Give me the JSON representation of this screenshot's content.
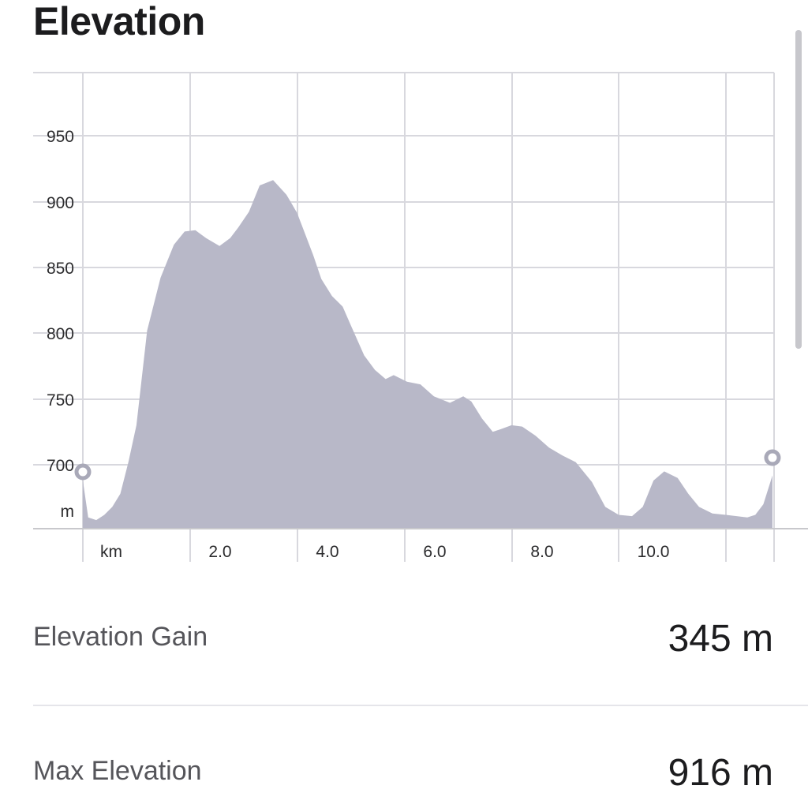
{
  "header": {
    "title": "Elevation"
  },
  "chart_data": {
    "type": "area",
    "title": "",
    "xlabel": "km",
    "ylabel": "m",
    "x_ticks": [
      "2.0",
      "4.0",
      "6.0",
      "8.0",
      "10.0"
    ],
    "y_ticks": [
      "700",
      "750",
      "800",
      "850",
      "900",
      "950"
    ],
    "xlim": [
      0,
      12.9
    ],
    "ylim": [
      650,
      995
    ],
    "grid": true,
    "fill_color": "#b8b8c8",
    "series": [
      {
        "x": [
          0.0,
          0.1,
          0.25,
          0.4,
          0.55,
          0.7,
          0.85,
          1.0,
          1.2,
          1.45,
          1.7,
          1.9,
          2.1,
          2.3,
          2.55,
          2.75,
          2.9,
          3.1,
          3.3,
          3.55,
          3.8,
          4.0,
          4.15,
          4.3,
          4.45,
          4.65,
          4.85,
          5.0,
          5.25,
          5.45,
          5.65,
          5.8,
          6.05,
          6.3,
          6.55,
          6.85,
          7.1,
          7.25,
          7.45,
          7.65,
          7.8,
          8.0,
          8.2,
          8.45,
          8.7,
          8.95,
          9.2,
          9.5,
          9.75,
          10.0,
          10.25,
          10.45,
          10.65,
          10.85,
          11.1,
          11.3,
          11.5,
          11.75,
          12.0,
          12.2,
          12.4,
          12.55,
          12.7,
          12.87
        ],
        "y": [
          688,
          660,
          658,
          662,
          668,
          678,
          702,
          730,
          802,
          842,
          867,
          877,
          878,
          872,
          866,
          872,
          880,
          892,
          912,
          916,
          905,
          891,
          875,
          859,
          841,
          828,
          820,
          806,
          783,
          772,
          765,
          768,
          763,
          761,
          752,
          747,
          752,
          748,
          735,
          725,
          727,
          730,
          729,
          722,
          713,
          707,
          702,
          687,
          668,
          662,
          661,
          668,
          688,
          695,
          690,
          678,
          668,
          663,
          662,
          661,
          660,
          662,
          670,
          692
        ]
      }
    ]
  },
  "stats": {
    "gain_label": "Elevation Gain",
    "gain_value": "345 m",
    "max_label": "Max Elevation",
    "max_value": "916 m"
  }
}
